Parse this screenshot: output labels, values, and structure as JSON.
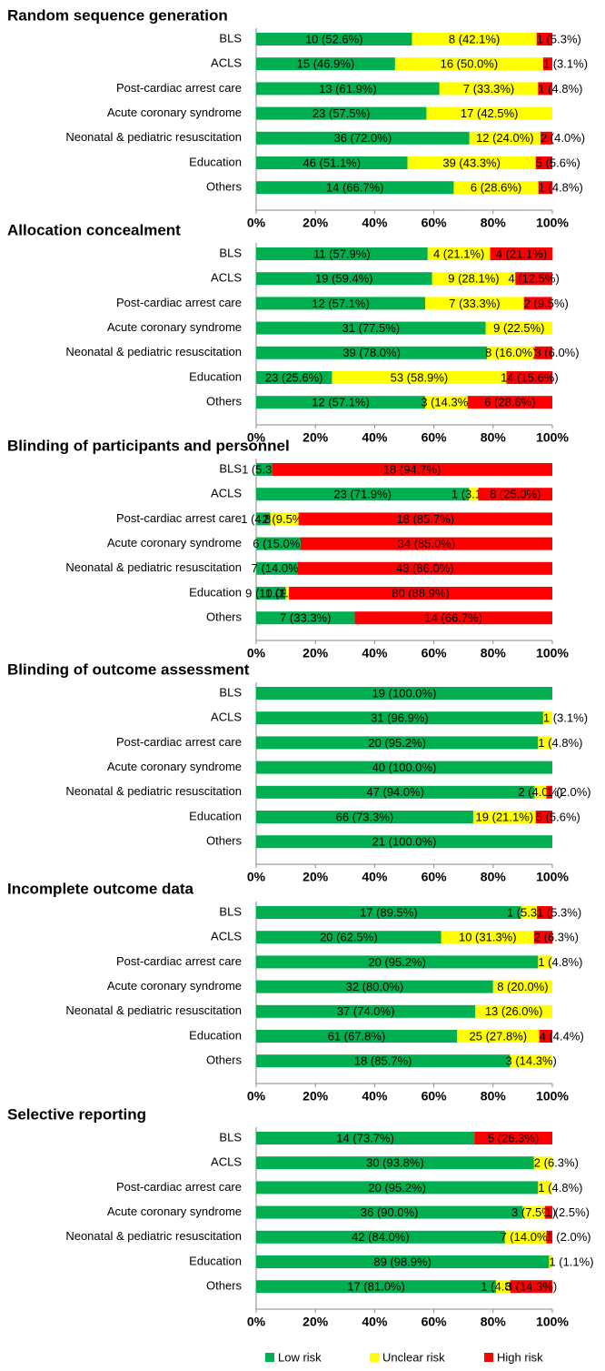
{
  "chart_data": [
    {
      "type": "stacked-bar",
      "title": "Random sequence generation",
      "categories": [
        "BLS",
        "ACLS",
        "Post-cardiac arrest care",
        "Acute coronary syndrome",
        "Neonatal & pediatric resuscitation",
        "Education",
        "Others"
      ],
      "xlim": [
        0,
        100
      ],
      "xticks": [
        {
          "value": 0,
          "label": "0%"
        },
        {
          "value": 20,
          "label": "20%"
        },
        {
          "value": 40,
          "label": "40%"
        },
        {
          "value": 60,
          "label": "60%"
        },
        {
          "value": 80,
          "label": "80%"
        },
        {
          "value": 100,
          "label": "100%"
        }
      ],
      "series": [
        {
          "name": "Low risk",
          "color": "#00b050",
          "values": [
            52.6,
            46.9,
            61.9,
            57.5,
            72.0,
            51.1,
            66.7
          ],
          "value_labels": [
            "10 (52.6%)",
            "15 (46.9%)",
            "13 (61.9%)",
            "23 (57.5%)",
            "36 (72.0%)",
            "46 (51.1%)",
            "14 (66.7%)"
          ]
        },
        {
          "name": "Unclear risk",
          "color": "#ffff00",
          "values": [
            42.1,
            50.0,
            33.3,
            42.5,
            24.0,
            43.3,
            28.6
          ],
          "value_labels": [
            "8 (42.1%)",
            "16 (50.0%)",
            "7 (33.3%)",
            "17 (42.5%)",
            "12 (24.0%)",
            "39 (43.3%)",
            "6 (28.6%)"
          ]
        },
        {
          "name": "High risk",
          "color": "#ff0000",
          "values": [
            5.3,
            3.1,
            4.8,
            null,
            4.0,
            5.6,
            4.8
          ],
          "value_labels": [
            "1 (5.3%)",
            "1 (3.1%)",
            "1 (4.8%)",
            null,
            "2 (4.0%)",
            "5 (5.6%)",
            "1 (4.8%)"
          ]
        }
      ]
    },
    {
      "type": "stacked-bar",
      "title": "Allocation concealment",
      "categories": [
        "BLS",
        "ACLS",
        "Post-cardiac arrest care",
        "Acute coronary syndrome",
        "Neonatal & pediatric resuscitation",
        "Education",
        "Others"
      ],
      "xlim": [
        0,
        100
      ],
      "xticks": [
        {
          "value": 0,
          "label": "0%"
        },
        {
          "value": 20,
          "label": "20%"
        },
        {
          "value": 40,
          "label": "40%"
        },
        {
          "value": 60,
          "label": "60%"
        },
        {
          "value": 80,
          "label": "80%"
        },
        {
          "value": 100,
          "label": "100%"
        }
      ],
      "series": [
        {
          "color": "#00b050",
          "values": [
            57.9,
            59.4,
            57.1,
            77.5,
            78.0,
            25.6,
            57.1
          ],
          "value_labels": [
            "11 (57.9%)",
            "19 (59.4%)",
            "12 (57.1%)",
            "31 (77.5%)",
            "39 (78.0%)",
            "23 (25.6%)",
            "12 (57.1%)"
          ]
        },
        {
          "color": "#ffff00",
          "values": [
            21.1,
            28.1,
            33.3,
            22.5,
            16.0,
            58.9,
            14.3
          ],
          "value_labels": [
            "4 (21.1%)",
            "9 (28.1%)",
            "7 (33.3%)",
            "9 (22.5%)",
            "8 (16.0%)",
            "53 (58.9%)",
            "3 (14.3%)"
          ]
        },
        {
          "color": "#ff0000",
          "values": [
            21.1,
            12.5,
            9.5,
            null,
            6.0,
            15.6,
            28.6
          ],
          "value_labels": [
            "4 (21.1%)",
            "4 (12.5%)",
            "2 (9.5%)",
            null,
            "3 (6.0%)",
            "14 (15.6%)",
            "6 (28.6%)"
          ]
        }
      ]
    },
    {
      "type": "stacked-bar",
      "title": "Blinding of participants and personnel",
      "categories": [
        "BLS",
        "ACLS",
        "Post-cardiac arrest care",
        "Acute coronary syndrome",
        "Neonatal & pediatric resuscitation",
        "Education",
        "Others"
      ],
      "xlim": [
        0,
        100
      ],
      "xticks": [
        {
          "value": 0,
          "label": "0%"
        },
        {
          "value": 20,
          "label": "20%"
        },
        {
          "value": 40,
          "label": "40%"
        },
        {
          "value": 60,
          "label": "60%"
        },
        {
          "value": 80,
          "label": "80%"
        },
        {
          "value": 100,
          "label": "100%"
        }
      ],
      "series": [
        {
          "color": "#00b050",
          "values": [
            5.3,
            71.9,
            4.8,
            15.0,
            14.0,
            10.0,
            33.3
          ],
          "value_labels": [
            "1 (5.3%)",
            "23 (71.9%)",
            "1 (4.8%)",
            "6 (15.0%)",
            "7 (14.0%)",
            "9 (10.0%)",
            "7 (33.3%)"
          ]
        },
        {
          "color": "#ffff00",
          "values": [
            null,
            3.1,
            9.5,
            null,
            null,
            1.1,
            null
          ],
          "value_labels": [
            null,
            "1 (3.1%)",
            "2 (9.5%)",
            null,
            null,
            "1 (1.1%)",
            null
          ]
        },
        {
          "color": "#ff0000",
          "values": [
            94.7,
            25.0,
            85.7,
            85.0,
            86.0,
            88.9,
            66.7
          ],
          "value_labels": [
            "18 (94.7%)",
            "8 (25.0%)",
            "18 (85.7%)",
            "34 (85.0%)",
            "43 (86.0%)",
            "80 (88.9%)",
            "14 (66.7%)"
          ]
        }
      ]
    },
    {
      "type": "stacked-bar",
      "title": "Blinding of outcome assessment",
      "categories": [
        "BLS",
        "ACLS",
        "Post-cardiac arrest care",
        "Acute coronary syndrome",
        "Neonatal & pediatric resuscitation",
        "Education",
        "Others"
      ],
      "xlim": [
        0,
        100
      ],
      "xticks": [
        {
          "value": 0,
          "label": "0%"
        },
        {
          "value": 20,
          "label": "20%"
        },
        {
          "value": 40,
          "label": "40%"
        },
        {
          "value": 60,
          "label": "60%"
        },
        {
          "value": 80,
          "label": "80%"
        },
        {
          "value": 100,
          "label": "100%"
        }
      ],
      "series": [
        {
          "color": "#00b050",
          "values": [
            100.0,
            96.9,
            95.2,
            100.0,
            94.0,
            73.3,
            100.0
          ],
          "value_labels": [
            "19 (100.0%)",
            "31 (96.9%)",
            "20 (95.2%)",
            "40 (100.0%)",
            "47 (94.0%)",
            "66 (73.3%)",
            "21 (100.0%)"
          ]
        },
        {
          "color": "#ffff00",
          "values": [
            null,
            3.1,
            4.8,
            null,
            4.0,
            21.1,
            null
          ],
          "value_labels": [
            null,
            "1 (3.1%)",
            "1 (4.8%)",
            null,
            "2 (4.0%)",
            "19 (21.1%)",
            null
          ]
        },
        {
          "color": "#ff0000",
          "values": [
            null,
            null,
            null,
            null,
            2.0,
            5.6,
            null
          ],
          "value_labels": [
            null,
            null,
            null,
            null,
            "1 (2.0%)",
            "5 (5.6%)",
            null
          ]
        }
      ]
    },
    {
      "type": "stacked-bar",
      "title": "Incomplete outcome data",
      "categories": [
        "BLS",
        "ACLS",
        "Post-cardiac arrest care",
        "Acute coronary syndrome",
        "Neonatal & pediatric resuscitation",
        "Education",
        "Others"
      ],
      "xlim": [
        0,
        100
      ],
      "xticks": [
        {
          "value": 0,
          "label": "0%"
        },
        {
          "value": 20,
          "label": "20%"
        },
        {
          "value": 40,
          "label": "40%"
        },
        {
          "value": 60,
          "label": "60%"
        },
        {
          "value": 80,
          "label": "80%"
        },
        {
          "value": 100,
          "label": "100%"
        }
      ],
      "series": [
        {
          "color": "#00b050",
          "values": [
            89.5,
            62.5,
            95.2,
            80.0,
            74.0,
            67.8,
            85.7
          ],
          "value_labels": [
            "17 (89.5%)",
            "20 (62.5%)",
            "20 (95.2%)",
            "32 (80.0%)",
            "37 (74.0%)",
            "61 (67.8%)",
            "18 (85.7%)"
          ]
        },
        {
          "color": "#ffff00",
          "values": [
            5.3,
            31.3,
            4.8,
            20.0,
            26.0,
            27.8,
            14.3
          ],
          "value_labels": [
            "1 (5.3%)",
            "10 (31.3%)",
            "1 (4.8%)",
            "8 (20.0%)",
            "13 (26.0%)",
            "25 (27.8%)",
            "3 (14.3%)"
          ]
        },
        {
          "color": "#ff0000",
          "values": [
            5.3,
            6.3,
            null,
            null,
            null,
            4.4,
            null
          ],
          "value_labels": [
            "1 (5.3%)",
            "2 (6.3%)",
            null,
            null,
            null,
            "4 (4.4%)",
            null
          ]
        }
      ]
    },
    {
      "type": "stacked-bar",
      "title": "Selective reporting",
      "categories": [
        "BLS",
        "ACLS",
        "Post-cardiac arrest care",
        "Acute coronary syndrome",
        "Neonatal & pediatric resuscitation",
        "Education",
        "Others"
      ],
      "xlim": [
        0,
        100
      ],
      "xticks": [
        {
          "value": 0,
          "label": "0%"
        },
        {
          "value": 20,
          "label": "20%"
        },
        {
          "value": 40,
          "label": "40%"
        },
        {
          "value": 60,
          "label": "60%"
        },
        {
          "value": 80,
          "label": "80%"
        },
        {
          "value": 100,
          "label": "100%"
        }
      ],
      "series": [
        {
          "color": "#00b050",
          "values": [
            73.7,
            93.8,
            95.2,
            90.0,
            84.0,
            98.9,
            81.0
          ],
          "value_labels": [
            "14 (73.7%)",
            "30 (93.8%)",
            "20 (95.2%)",
            "36 (90.0%)",
            "42 (84.0%)",
            "89 (98.9%)",
            "17 (81.0%)"
          ]
        },
        {
          "color": "#ffff00",
          "values": [
            null,
            6.3,
            4.8,
            7.5,
            14.0,
            1.1,
            4.8
          ],
          "value_labels": [
            null,
            "2 (6.3%)",
            "1 (4.8%)",
            "3 (7.5%)",
            "7 (14.0%)",
            "1 (1.1%)",
            "1 (4.8%)"
          ]
        },
        {
          "color": "#ff0000",
          "values": [
            26.3,
            null,
            null,
            2.5,
            2.0,
            null,
            14.3
          ],
          "value_labels": [
            "5 (26.3%)",
            null,
            null,
            "1 (2.5%)",
            "1 (2.0%)",
            null,
            "3 (14.3%)"
          ]
        }
      ]
    }
  ]
}
